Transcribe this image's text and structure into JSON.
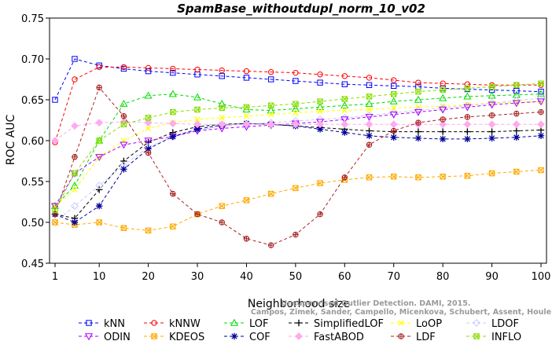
{
  "chart_data": {
    "type": "line",
    "title": "SpamBase_withoutdupl_norm_10_v02",
    "xlabel": "Neighborhood size",
    "ylabel": "ROC AUC",
    "xlim": [
      1,
      100
    ],
    "ylim": [
      0.45,
      0.75
    ],
    "xticks": [
      1,
      10,
      20,
      30,
      40,
      50,
      60,
      70,
      80,
      90,
      100
    ],
    "yticks": [
      0.45,
      0.5,
      0.55,
      0.6,
      0.65,
      0.7,
      0.75
    ],
    "grid": false,
    "legend_position": "bottom",
    "x": [
      1,
      5,
      10,
      15,
      20,
      25,
      30,
      35,
      40,
      45,
      50,
      55,
      60,
      65,
      70,
      75,
      80,
      85,
      90,
      95,
      100
    ],
    "series": [
      {
        "name": "kNN",
        "color": "#0000ff",
        "marker": "square",
        "values": [
          0.65,
          0.7,
          0.692,
          0.688,
          0.685,
          0.683,
          0.681,
          0.679,
          0.677,
          0.675,
          0.673,
          0.671,
          0.669,
          0.668,
          0.667,
          0.666,
          0.664,
          0.663,
          0.662,
          0.661,
          0.66
        ]
      },
      {
        "name": "kNNW",
        "color": "#ff0000",
        "marker": "circle",
        "values": [
          0.598,
          0.675,
          0.69,
          0.69,
          0.689,
          0.688,
          0.687,
          0.686,
          0.685,
          0.684,
          0.683,
          0.681,
          0.679,
          0.677,
          0.674,
          0.671,
          0.67,
          0.669,
          0.668,
          0.668,
          0.668
        ]
      },
      {
        "name": "LOF",
        "color": "#00dd00",
        "marker": "triangle-up",
        "values": [
          0.52,
          0.545,
          0.6,
          0.645,
          0.655,
          0.657,
          0.653,
          0.645,
          0.638,
          0.637,
          0.639,
          0.641,
          0.643,
          0.645,
          0.648,
          0.65,
          0.652,
          0.654,
          0.655,
          0.656,
          0.657
        ]
      },
      {
        "name": "SimplifiedLOF",
        "color": "#000000",
        "marker": "plus",
        "values": [
          0.51,
          0.505,
          0.54,
          0.575,
          0.598,
          0.61,
          0.617,
          0.62,
          0.621,
          0.62,
          0.618,
          0.616,
          0.614,
          0.612,
          0.611,
          0.611,
          0.611,
          0.611,
          0.611,
          0.612,
          0.613
        ]
      },
      {
        "name": "LoOP",
        "color": "#ffff00",
        "marker": "x",
        "values": [
          0.52,
          0.54,
          0.58,
          0.6,
          0.615,
          0.622,
          0.626,
          0.628,
          0.63,
          0.632,
          0.634,
          0.636,
          0.637,
          0.638,
          0.64,
          0.641,
          0.642,
          0.644,
          0.646,
          0.647,
          0.648
        ]
      },
      {
        "name": "LDOF",
        "color": "#c8c8ff",
        "marker": "diamond",
        "values": [
          0.5,
          0.52,
          0.545,
          0.57,
          0.592,
          0.605,
          0.613,
          0.618,
          0.62,
          0.622,
          0.624,
          0.626,
          0.628,
          0.631,
          0.634,
          0.637,
          0.64,
          0.643,
          0.646,
          0.649,
          0.652
        ]
      },
      {
        "name": "ODIN",
        "color": "#aa00ff",
        "marker": "triangle-down",
        "values": [
          0.52,
          0.56,
          0.58,
          0.595,
          0.6,
          0.605,
          0.612,
          0.615,
          0.617,
          0.619,
          0.621,
          0.623,
          0.626,
          0.629,
          0.632,
          0.635,
          0.638,
          0.641,
          0.644,
          0.646,
          0.648
        ]
      },
      {
        "name": "KDEOS",
        "color": "#ffaa00",
        "marker": "square-x",
        "values": [
          0.5,
          0.497,
          0.5,
          0.493,
          0.49,
          0.495,
          0.51,
          0.52,
          0.527,
          0.535,
          0.542,
          0.548,
          0.552,
          0.555,
          0.556,
          0.555,
          0.556,
          0.557,
          0.56,
          0.562,
          0.564
        ]
      },
      {
        "name": "COF",
        "color": "#000099",
        "marker": "asterisk",
        "values": [
          0.51,
          0.5,
          0.52,
          0.565,
          0.59,
          0.605,
          0.614,
          0.619,
          0.621,
          0.62,
          0.618,
          0.614,
          0.61,
          0.606,
          0.604,
          0.603,
          0.602,
          0.602,
          0.603,
          0.604,
          0.606
        ]
      },
      {
        "name": "FastABOD",
        "color": "#ffaaee",
        "marker": "diamond-filled",
        "values": [
          0.6,
          0.618,
          0.622,
          0.623,
          0.622,
          0.621,
          0.62,
          0.62,
          0.62,
          0.62,
          0.62,
          0.62,
          0.62,
          0.62,
          0.62,
          0.62,
          0.62,
          0.62,
          0.62,
          0.62,
          0.62
        ]
      },
      {
        "name": "LDF",
        "color": "#aa2222",
        "marker": "circle-plus",
        "values": [
          0.51,
          0.58,
          0.665,
          0.63,
          0.585,
          0.535,
          0.51,
          0.5,
          0.48,
          0.472,
          0.485,
          0.51,
          0.555,
          0.595,
          0.612,
          0.622,
          0.626,
          0.629,
          0.631,
          0.633,
          0.635
        ]
      },
      {
        "name": "INFLO",
        "color": "#88dd00",
        "marker": "square-x-open",
        "values": [
          0.515,
          0.56,
          0.6,
          0.62,
          0.628,
          0.635,
          0.638,
          0.64,
          0.641,
          0.643,
          0.645,
          0.648,
          0.651,
          0.654,
          0.657,
          0.66,
          0.662,
          0.664,
          0.666,
          0.668,
          0.67
        ]
      }
    ]
  },
  "watermark": {
    "line1": "Unsupervised Outlier Detection. DAMI, 2015.",
    "line2": "Campos, Zimek, Sander, Campello, Micenkova, Schubert, Assent, Houle"
  }
}
